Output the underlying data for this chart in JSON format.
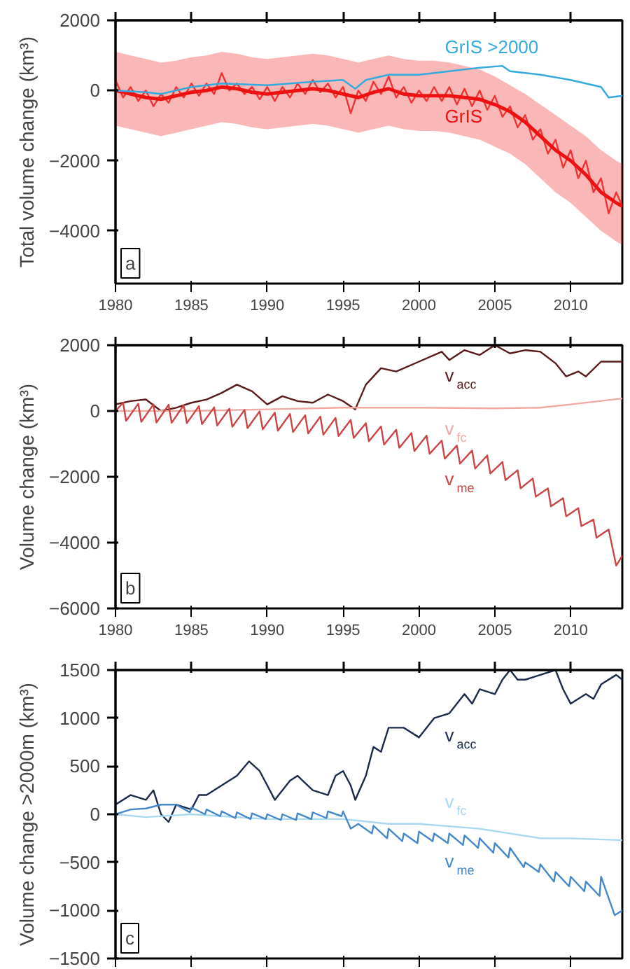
{
  "chart_data": [
    {
      "type": "line",
      "ylabel": "Total volume change (km³)",
      "xlim": [
        1980,
        2013.4
      ],
      "ylim": [
        -5500,
        2000
      ],
      "xticks": [
        1980,
        1985,
        1990,
        1995,
        2000,
        2005,
        2010
      ],
      "yticks": [
        -4000,
        -2000,
        0,
        2000
      ],
      "grid": false,
      "annotations": [
        "a"
      ],
      "series": [
        {
          "color": "#ee3333",
          "x": [
            1980,
            1980.5,
            1981,
            1981.5,
            1982,
            1982.5,
            1983,
            1983.5,
            1984,
            1984.5,
            1985,
            1985.5,
            1986,
            1986.5,
            1987,
            1987.5,
            1988,
            1988.5,
            1989,
            1989.5,
            1990,
            1990.5,
            1991,
            1991.5,
            1992,
            1992.5,
            1993,
            1993.5,
            1994,
            1994.5,
            1995,
            1995.5,
            1996,
            1996.5,
            1997,
            1997.5,
            1998,
            1998.5,
            1999,
            1999.5,
            2000,
            2000.5,
            2001,
            2001.5,
            2002,
            2002.5,
            2003,
            2003.5,
            2004,
            2004.5,
            2005,
            2005.5,
            2006,
            2006.5,
            2007,
            2007.5,
            2008,
            2008.5,
            2009,
            2009.5,
            2010,
            2010.5,
            2011,
            2011.5,
            2012,
            2012.5,
            2013,
            2013.4
          ],
          "values": [
            300,
            -200,
            100,
            -300,
            0,
            -450,
            -100,
            -350,
            100,
            -200,
            200,
            -150,
            200,
            -100,
            500,
            0,
            200,
            -100,
            100,
            -250,
            100,
            -300,
            100,
            -200,
            200,
            -100,
            300,
            -50,
            200,
            -200,
            100,
            -650,
            0,
            -300,
            250,
            -100,
            400,
            -200,
            100,
            -350,
            0,
            -300,
            100,
            -300,
            100,
            -400,
            50,
            -450,
            0,
            -550,
            -150,
            -750,
            -450,
            -1050,
            -700,
            -1400,
            -1100,
            -1800,
            -1400,
            -2200,
            -1700,
            -2500,
            -2000,
            -2900,
            -2500,
            -3500,
            -2900,
            -3300
          ]
        },
        {
          "name": "GrIS",
          "color": "#ee1111",
          "x": [
            1980,
            1981,
            1982,
            1983,
            1984,
            1985,
            1986,
            1987,
            1988,
            1989,
            1990,
            1991,
            1992,
            1993,
            1994,
            1995,
            1996,
            1997,
            1998,
            1999,
            2000,
            2001,
            2002,
            2003,
            2004,
            2005,
            2006,
            2007,
            2008,
            2009,
            2010,
            2011,
            2012,
            2013,
            2013.4
          ],
          "values": [
            0,
            -100,
            -200,
            -250,
            -150,
            -50,
            0,
            100,
            50,
            -50,
            -100,
            -50,
            0,
            50,
            0,
            -100,
            -200,
            -50,
            50,
            -100,
            -150,
            -150,
            -150,
            -200,
            -250,
            -400,
            -600,
            -900,
            -1300,
            -1700,
            -2000,
            -2400,
            -2900,
            -3200,
            -3300
          ],
          "upper": [
            1100,
            1000,
            900,
            800,
            850,
            950,
            1000,
            1100,
            1050,
            950,
            900,
            950,
            1000,
            1050,
            1000,
            900,
            800,
            900,
            1000,
            900,
            850,
            850,
            800,
            700,
            600,
            400,
            150,
            -100,
            -400,
            -700,
            -1000,
            -1300,
            -1700,
            -2000,
            -2100
          ],
          "lower": [
            -1000,
            -1100,
            -1200,
            -1300,
            -1200,
            -1100,
            -1000,
            -900,
            -950,
            -1050,
            -1100,
            -1050,
            -1000,
            -950,
            -1000,
            -1100,
            -1200,
            -1100,
            -1000,
            -1100,
            -1150,
            -1150,
            -1200,
            -1300,
            -1400,
            -1600,
            -1800,
            -2100,
            -2500,
            -2900,
            -3200,
            -3600,
            -4000,
            -4300,
            -4400
          ]
        },
        {
          "name": "GrIS >2000",
          "color": "#33aadd",
          "x": [
            1980,
            1982,
            1983,
            1985,
            1987,
            1990,
            1993,
            1995,
            1995.8,
            1996.5,
            1998,
            2000,
            2002,
            2004,
            2005.5,
            2006,
            2008,
            2010,
            2012,
            2012.5,
            2013.4
          ],
          "values": [
            0,
            -50,
            -100,
            100,
            200,
            150,
            250,
            300,
            50,
            300,
            450,
            450,
            550,
            650,
            700,
            550,
            450,
            300,
            100,
            -200,
            -150
          ]
        }
      ]
    },
    {
      "type": "line",
      "ylabel": "Volume change (km³)",
      "xlim": [
        1980,
        2013.4
      ],
      "ylim": [
        -6000,
        2000
      ],
      "xticks": [
        1980,
        1985,
        1990,
        1995,
        2000,
        2005,
        2010
      ],
      "yticks": [
        -6000,
        -4000,
        -2000,
        0,
        2000
      ],
      "grid": false,
      "annotations": [
        "b"
      ],
      "series": [
        {
          "name": "v$_{acc}$",
          "color": "#5a1a1a",
          "x": [
            1980,
            1981,
            1982,
            1983,
            1984,
            1985,
            1986,
            1987,
            1988,
            1989,
            1990,
            1991,
            1992,
            1993,
            1994,
            1995,
            1995.8,
            1996.5,
            1997.5,
            1998.5,
            2000,
            2001.5,
            2002,
            2003,
            2004,
            2005,
            2006,
            2007,
            2008,
            2009,
            2009.7,
            2010.5,
            2011,
            2012,
            2013.4
          ],
          "values": [
            200,
            300,
            350,
            0,
            100,
            250,
            350,
            550,
            800,
            600,
            200,
            450,
            300,
            250,
            500,
            300,
            50,
            800,
            1300,
            1200,
            1500,
            1800,
            1550,
            1850,
            1700,
            2000,
            1750,
            1850,
            1800,
            1450,
            1050,
            1200,
            1050,
            1500,
            1500
          ]
        },
        {
          "name": "v$_{fc}$",
          "color": "#f0a8a0",
          "x": [
            1980,
            1985,
            1990,
            1995,
            2000,
            2005,
            2008,
            2010,
            2013.4
          ],
          "values": [
            0,
            0,
            50,
            100,
            100,
            80,
            100,
            200,
            380
          ]
        },
        {
          "name": "v$_{me}$",
          "color": "#cc4444",
          "x": [
            1980,
            1980.5,
            1980.7,
            1981.5,
            1981.7,
            1982.5,
            1982.7,
            1983.5,
            1983.7,
            1984.5,
            1984.7,
            1985.5,
            1985.7,
            1986.5,
            1986.7,
            1987.5,
            1987.7,
            1988.5,
            1988.7,
            1989.5,
            1989.7,
            1990.5,
            1990.7,
            1991.5,
            1991.7,
            1992.5,
            1992.7,
            1993.5,
            1993.7,
            1994.5,
            1994.7,
            1995.5,
            1995.7,
            1996.5,
            1996.7,
            1997.5,
            1997.7,
            1998.5,
            1998.7,
            1999.5,
            1999.7,
            2000.5,
            2000.7,
            2001.5,
            2001.7,
            2002.5,
            2002.7,
            2003.5,
            2003.7,
            2004.5,
            2004.7,
            2005.5,
            2005.7,
            2006.5,
            2006.7,
            2007.5,
            2007.7,
            2008.5,
            2008.7,
            2009.5,
            2009.7,
            2010.5,
            2010.7,
            2011.5,
            2011.7,
            2012.5,
            2013,
            2013.4
          ],
          "values": [
            0,
            250,
            -300,
            220,
            -330,
            200,
            -350,
            190,
            -360,
            180,
            -370,
            150,
            -400,
            110,
            -440,
            70,
            -480,
            30,
            -520,
            -10,
            -560,
            -50,
            -600,
            -90,
            -640,
            -130,
            -680,
            -170,
            -720,
            -210,
            -760,
            -270,
            -820,
            -370,
            -920,
            -470,
            -1020,
            -570,
            -1120,
            -670,
            -1220,
            -750,
            -1300,
            -900,
            -1450,
            -1050,
            -1600,
            -1200,
            -1750,
            -1350,
            -1900,
            -1550,
            -2100,
            -1800,
            -2350,
            -2050,
            -2600,
            -2350,
            -2900,
            -2650,
            -3200,
            -2950,
            -3500,
            -3300,
            -3850,
            -3600,
            -4700,
            -4400
          ]
        }
      ]
    },
    {
      "type": "line",
      "ylabel": "Volume change >2000m (km³)",
      "xlim": [
        1980,
        2013.4
      ],
      "ylim": [
        -1500,
        1500
      ],
      "xticks": [
        1980,
        1985,
        1990,
        1995,
        2000,
        2005,
        2010
      ],
      "yticks": [
        -1500,
        -1000,
        -500,
        0,
        500,
        1000,
        1500
      ],
      "grid": false,
      "tick_labels": "y",
      "annotations": [
        "c"
      ],
      "series": [
        {
          "name": "v$_{acc}$",
          "color": "#1a2a4a",
          "x": [
            1980,
            1981,
            1982,
            1982.5,
            1983,
            1983.5,
            1984,
            1985,
            1985.5,
            1986,
            1987,
            1988,
            1988.8,
            1989.5,
            1990,
            1990.5,
            1991.5,
            1992,
            1993,
            1994,
            1994.5,
            1995,
            1995.5,
            1995.8,
            1996.5,
            1997,
            1997.5,
            1998,
            1999,
            2000,
            2001,
            2002,
            2003,
            2003.5,
            2004,
            2005,
            2005.5,
            2006,
            2006.5,
            2007,
            2008,
            2009,
            2009.5,
            2010,
            2011,
            2011.5,
            2012,
            2013,
            2013.4
          ],
          "values": [
            100,
            200,
            150,
            250,
            0,
            -80,
            100,
            50,
            200,
            200,
            300,
            400,
            550,
            450,
            300,
            150,
            350,
            400,
            250,
            200,
            400,
            450,
            300,
            150,
            400,
            700,
            650,
            900,
            900,
            800,
            1000,
            1050,
            1250,
            1150,
            1300,
            1250,
            1400,
            1500,
            1400,
            1400,
            1450,
            1500,
            1300,
            1150,
            1250,
            1200,
            1350,
            1450,
            1400
          ]
        },
        {
          "name": "v$_{fc}$",
          "color": "#a8d8f0",
          "x": [
            1980,
            1982,
            1985,
            1990,
            1995,
            1998,
            2000,
            2004,
            2008,
            2010,
            2013.4
          ],
          "values": [
            0,
            -30,
            0,
            -50,
            -50,
            -100,
            -100,
            -150,
            -250,
            -250,
            -270
          ]
        },
        {
          "name": "v$_{me}$",
          "color": "#4488cc",
          "x": [
            1980,
            1981,
            1982,
            1983,
            1984,
            1984.9,
            1985,
            1985.9,
            1986,
            1986.9,
            1987,
            1987.9,
            1988,
            1988.9,
            1989,
            1989.9,
            1990,
            1990.9,
            1991,
            1991.9,
            1992,
            1992.9,
            1993,
            1993.9,
            1994,
            1994.9,
            1995,
            1995.5,
            1996,
            1996.9,
            1997,
            1997.9,
            1998,
            1998.9,
            1999,
            1999.9,
            2000,
            2000.9,
            2001,
            2001.9,
            2002,
            2002.9,
            2003,
            2003.9,
            2004,
            2004.9,
            2005,
            2005.9,
            2006,
            2006.9,
            2007,
            2007.9,
            2008,
            2008.9,
            2009,
            2009.9,
            2010,
            2010.9,
            2011,
            2011.9,
            2012,
            2012.9,
            2013.4
          ],
          "values": [
            0,
            50,
            60,
            100,
            100,
            20,
            70,
            0,
            50,
            -20,
            30,
            -40,
            20,
            -50,
            10,
            -50,
            0,
            -60,
            0,
            -60,
            10,
            -50,
            20,
            -40,
            30,
            -20,
            30,
            -150,
            -100,
            -200,
            -120,
            -250,
            -150,
            -280,
            -200,
            -300,
            -180,
            -280,
            -200,
            -300,
            -200,
            -320,
            -220,
            -350,
            -250,
            -400,
            -300,
            -450,
            -350,
            -550,
            -500,
            -600,
            -520,
            -700,
            -600,
            -750,
            -650,
            -800,
            -700,
            -850,
            -650,
            -1050,
            -1000
          ]
        }
      ]
    }
  ]
}
